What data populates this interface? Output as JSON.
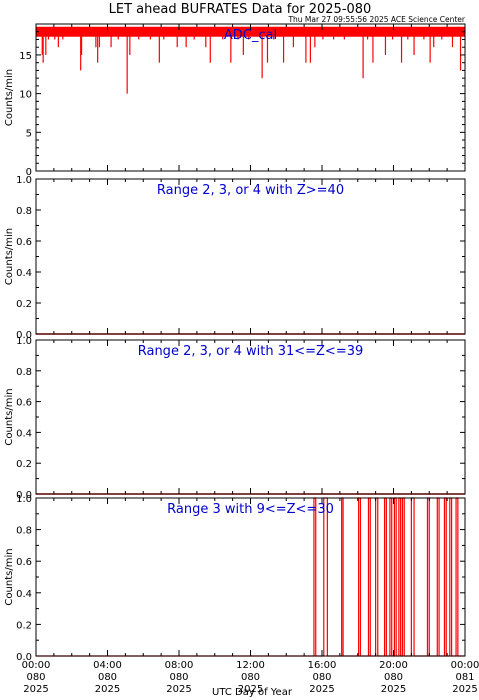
{
  "page_title": "LET ahead BUFRATES Data for 2025-080",
  "timestamp": "Thu Mar 27 09:55:56 2025 ACE Science Center",
  "colors": {
    "trace": "#ff0000",
    "panel_title": "#0000cc",
    "axes": "#000000"
  },
  "chart_data": [
    {
      "type": "line",
      "title": "ADC_cal",
      "ylabel": "Counts/min",
      "ylim": [
        0,
        19
      ],
      "yticks": [
        0,
        5,
        10,
        15
      ],
      "ytick_labels": [
        "0",
        "5",
        "10",
        "15"
      ],
      "baseline": 18,
      "series": [
        {
          "x": [
            0.35,
            0.4,
            0.55,
            0.7,
            1.05,
            1.25,
            1.5,
            2.5,
            2.55,
            3.35,
            3.45,
            3.55,
            4.2,
            4.6,
            5.1,
            5.25,
            5.75,
            6.4,
            6.9,
            7.15,
            7.9,
            8.4,
            8.85,
            9.5,
            9.75,
            10.45,
            10.9,
            11.3,
            11.6,
            11.9,
            12.65,
            12.95,
            13.3,
            13.85,
            14.4,
            15.1,
            15.35,
            15.6,
            16.05,
            16.65,
            17.25,
            18.3,
            18.55,
            18.85,
            19.55,
            19.95,
            20.45,
            20.8,
            21.15,
            21.7,
            22.05,
            22.25,
            22.7,
            23.3,
            23.75
          ],
          "y": [
            15,
            14,
            15,
            17,
            17,
            16,
            17,
            13,
            15,
            16,
            14,
            16,
            16,
            17,
            10,
            15,
            17,
            17,
            14,
            17,
            16,
            16,
            17,
            16,
            14,
            17,
            14,
            17,
            15,
            17,
            12,
            14,
            17,
            14,
            16,
            14,
            14,
            16,
            17,
            17,
            17,
            12,
            17,
            14,
            15,
            17,
            14,
            17,
            15,
            17,
            14,
            16,
            17,
            16,
            13
          ]
        }
      ]
    },
    {
      "type": "line",
      "title": "Range 2, 3, or 4 with Z>=40",
      "ylabel": "Counts/min",
      "ylim": [
        0,
        1
      ],
      "yticks": [
        0,
        0.2,
        0.4,
        0.6,
        0.8,
        1.0
      ],
      "ytick_labels": [
        "0.0",
        "0.2",
        "0.4",
        "0.6",
        "0.8",
        "1.0"
      ],
      "series": [
        {
          "x": [
            0,
            24
          ],
          "y": [
            0,
            0
          ]
        }
      ]
    },
    {
      "type": "line",
      "title": "Range 2, 3, or 4 with 31<=Z<=39",
      "ylabel": "Counts/min",
      "ylim": [
        0,
        1
      ],
      "yticks": [
        0,
        0.2,
        0.4,
        0.6,
        0.8,
        1.0
      ],
      "ytick_labels": [
        "0.0",
        "0.2",
        "0.4",
        "0.6",
        "0.8",
        "1.0"
      ],
      "series": [
        {
          "x": [
            0,
            24
          ],
          "y": [
            0,
            0
          ]
        }
      ]
    },
    {
      "type": "line",
      "title": "Range 3 with 9<=Z<=30",
      "ylabel": "Counts/min",
      "ylim": [
        0,
        1
      ],
      "yticks": [
        0,
        0.2,
        0.4,
        0.6,
        0.8,
        1.0
      ],
      "ytick_labels": [
        "0.0",
        "0.2",
        "0.4",
        "0.6",
        "0.8",
        "1.0"
      ],
      "series": [
        {
          "pulses": [
            [
              15.55,
              15.65
            ],
            [
              16.1,
              16.3
            ],
            [
              17.1,
              17.18
            ],
            [
              18.05,
              18.15
            ],
            [
              18.6,
              18.7
            ],
            [
              19.0,
              19.12
            ],
            [
              19.5,
              19.6
            ],
            [
              19.8,
              19.9
            ],
            [
              20.05,
              20.15
            ],
            [
              20.3,
              20.4
            ],
            [
              20.5,
              20.6
            ],
            [
              21.0,
              21.15
            ],
            [
              21.9,
              22.0
            ],
            [
              22.45,
              22.55
            ],
            [
              22.85,
              22.95
            ],
            [
              23.15,
              23.25
            ],
            [
              23.5,
              23.6
            ]
          ]
        }
      ]
    }
  ],
  "x_axis": {
    "label": "UTC Day of Year",
    "range": [
      0,
      24
    ],
    "ticks": [
      {
        "value": 0,
        "time": "00:00",
        "doy": "080",
        "year": "2025"
      },
      {
        "value": 4,
        "time": "04:00",
        "doy": "080",
        "year": "2025"
      },
      {
        "value": 8,
        "time": "08:00",
        "doy": "080",
        "year": "2025"
      },
      {
        "value": 12,
        "time": "12:00",
        "doy": "080",
        "year": "2025"
      },
      {
        "value": 16,
        "time": "16:00",
        "doy": "080",
        "year": "2025"
      },
      {
        "value": 20,
        "time": "20:00",
        "doy": "080",
        "year": "2025"
      },
      {
        "value": 24,
        "time": "00:00",
        "doy": "081",
        "year": "2025"
      }
    ]
  }
}
